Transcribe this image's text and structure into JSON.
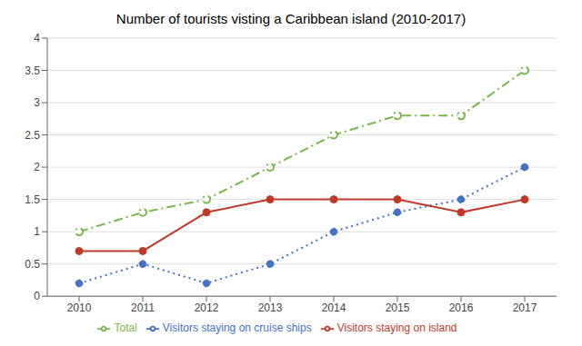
{
  "chart_data": {
    "type": "line",
    "title": "Number of tourists visting a Caribbean island (2010-2017)",
    "x": [
      2010,
      2011,
      2012,
      2013,
      2014,
      2015,
      2016,
      2017
    ],
    "xlim": [
      2009.5,
      2017.5
    ],
    "xticks": [
      2010,
      2011,
      2012,
      2013,
      2014,
      2015,
      2016,
      2017
    ],
    "ylim": [
      0,
      4
    ],
    "yticks": [
      0,
      0.5,
      1,
      1.5,
      2,
      2.5,
      3,
      3.5,
      4
    ],
    "grid": true,
    "legend": "bottom",
    "series": [
      {
        "name": "Visitors staying on cruise ships",
        "color": "#4472c4",
        "line_style": "dotted",
        "marker": "circle",
        "values": [
          0.2,
          0.5,
          0.2,
          0.5,
          1.0,
          1.3,
          1.5,
          2.0
        ]
      },
      {
        "name": "Visitors staying on island",
        "color": "#c0392b",
        "line_style": "solid",
        "marker": "circle",
        "values": [
          0.7,
          0.7,
          1.3,
          1.5,
          1.5,
          1.5,
          1.3,
          1.5
        ]
      },
      {
        "name": "Total",
        "color": "#7ab648",
        "line_style": "dashdot",
        "marker": "open_circle",
        "values": [
          1.0,
          1.3,
          1.5,
          2.0,
          2.5,
          2.8,
          2.8,
          3.5
        ]
      }
    ]
  }
}
